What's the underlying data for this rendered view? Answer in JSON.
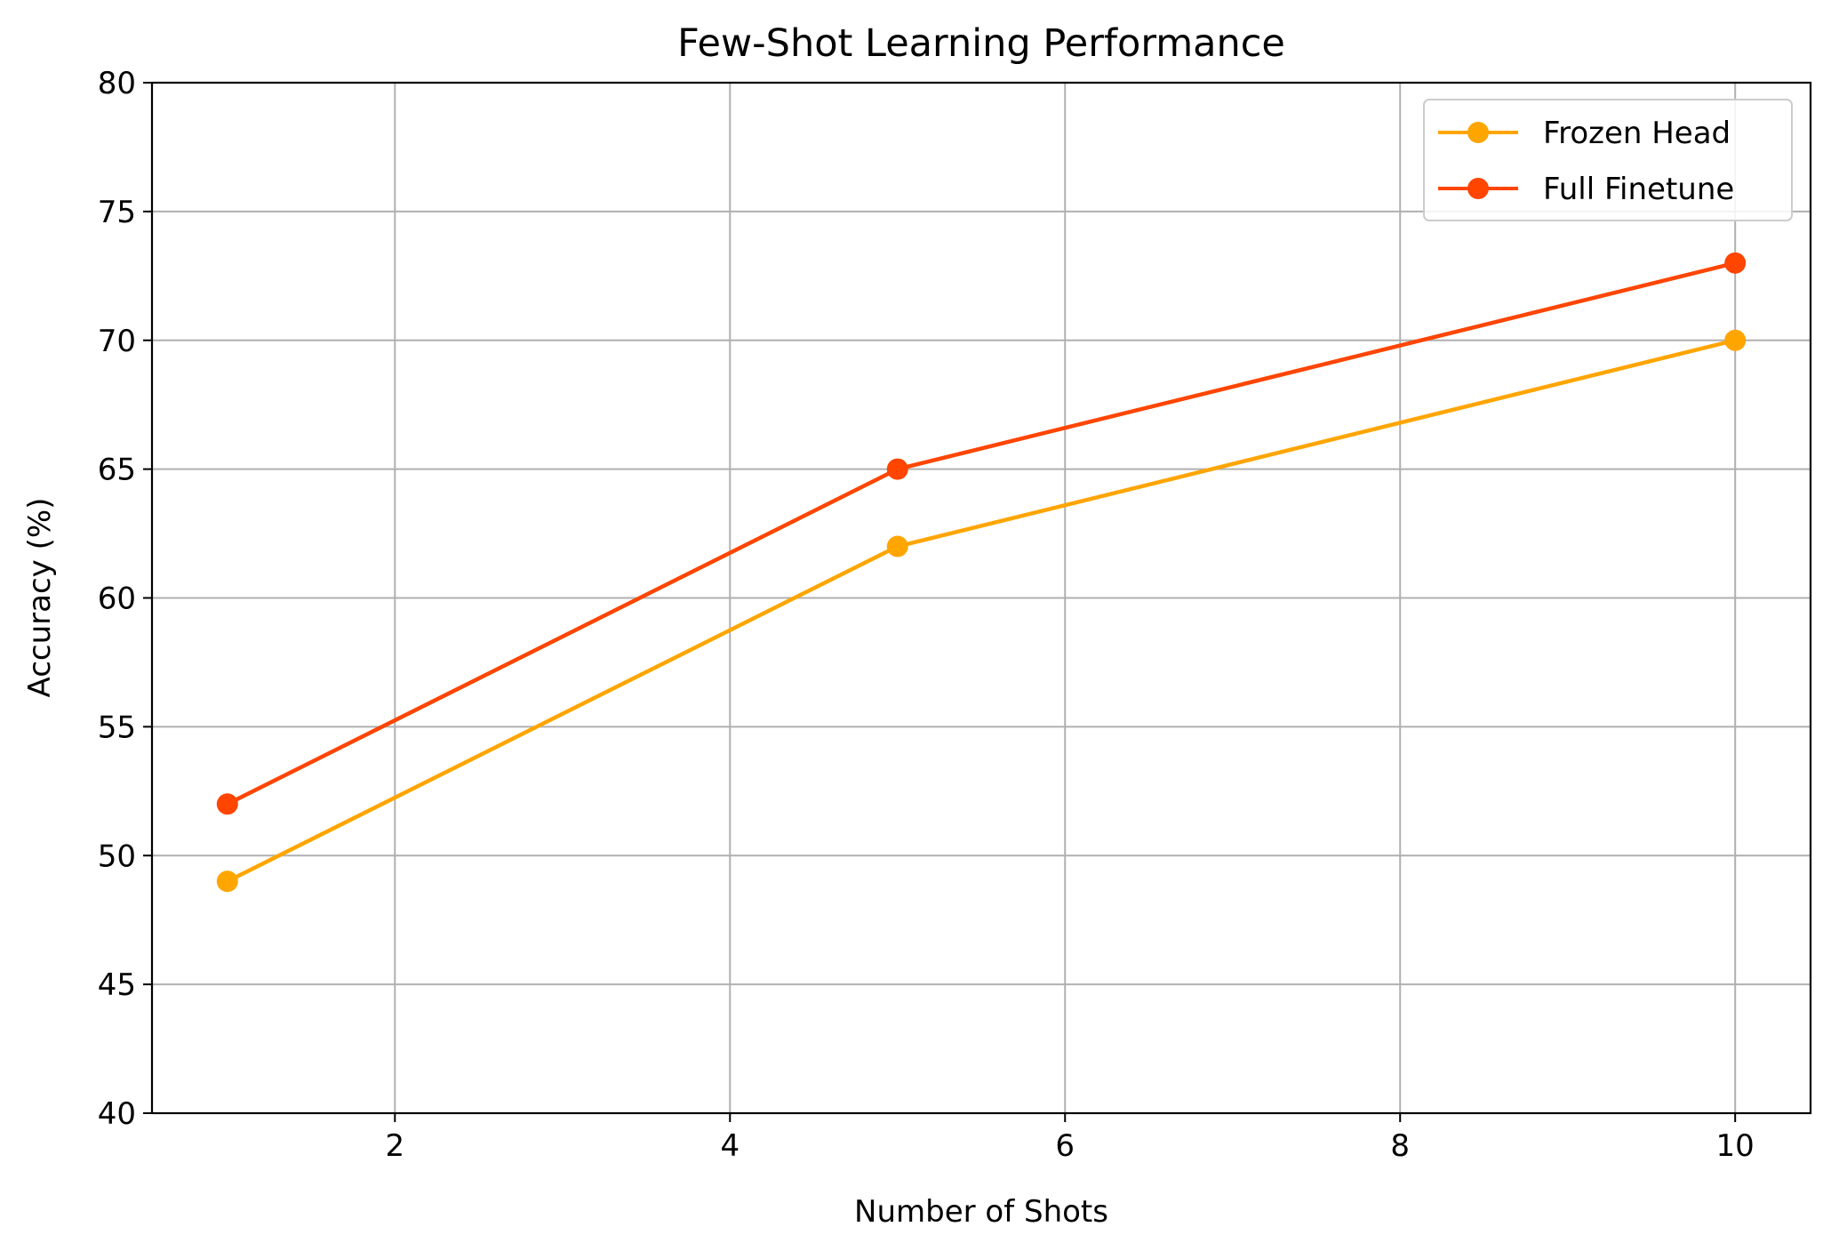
{
  "chart_data": {
    "type": "line",
    "title": "Few-Shot Learning Performance",
    "xlabel": "Number of Shots",
    "ylabel": "Accuracy (%)",
    "xlim": [
      0.55,
      10.45
    ],
    "ylim": [
      40,
      80
    ],
    "xticks": [
      2,
      4,
      6,
      8,
      10
    ],
    "yticks": [
      40,
      45,
      50,
      55,
      60,
      65,
      70,
      75,
      80
    ],
    "grid": true,
    "legend_position": "top-right",
    "x": [
      1,
      5,
      10
    ],
    "series": [
      {
        "name": "Frozen Head",
        "color": "#ffa500",
        "marker": "circle",
        "values": [
          49,
          62,
          70
        ]
      },
      {
        "name": "Full Finetune",
        "color": "#ff4500",
        "marker": "circle",
        "values": [
          52,
          65,
          73
        ]
      }
    ]
  }
}
